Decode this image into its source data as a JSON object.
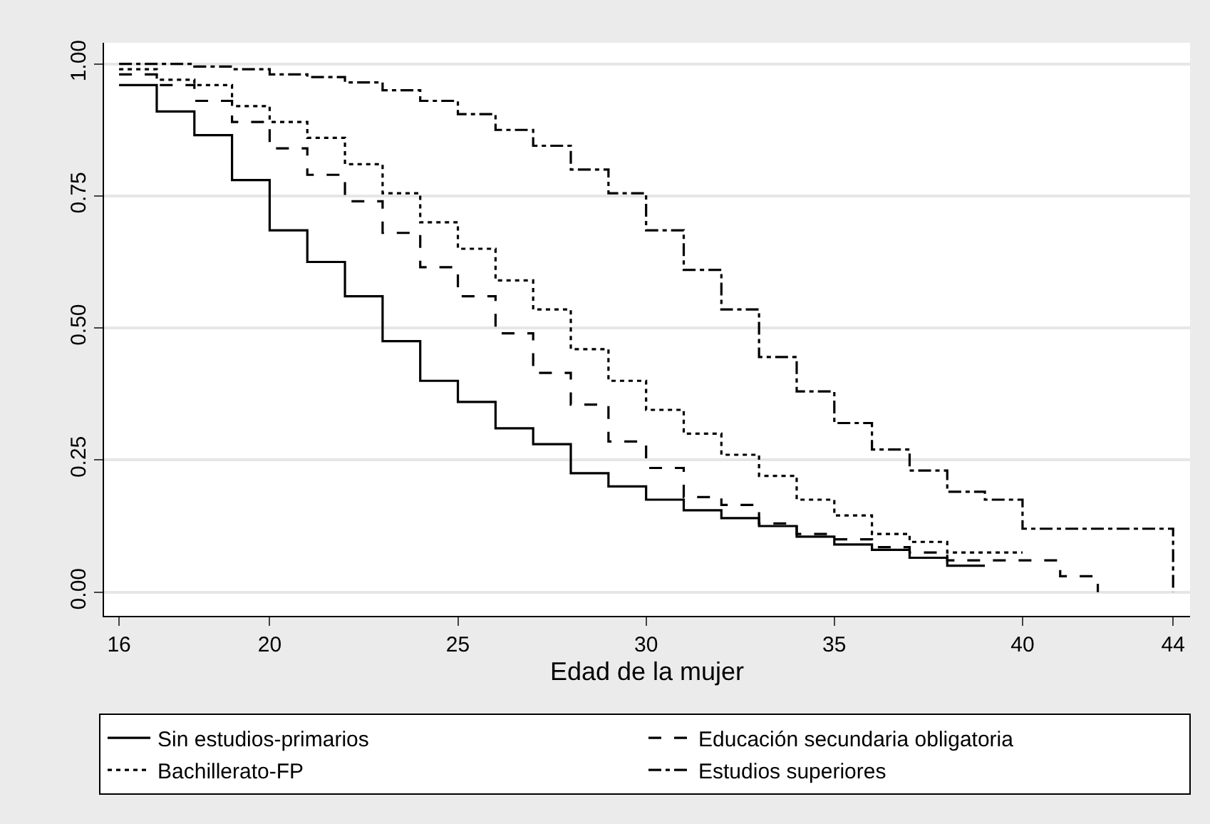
{
  "chart_data": {
    "type": "step",
    "xlabel": "Edad de la mujer",
    "xlim": [
      15.6,
      44.45
    ],
    "xticks": [
      16,
      20,
      25,
      30,
      35,
      40,
      44
    ],
    "ylim": [
      -0.045,
      1.04
    ],
    "yticks": [
      {
        "value": 0,
        "label": "0.00"
      },
      {
        "value": 0.25,
        "label": "0.25"
      },
      {
        "value": 0.5,
        "label": "0.50"
      },
      {
        "value": 0.75,
        "label": "0.75"
      },
      {
        "value": 1,
        "label": "1.00"
      }
    ],
    "grid": "y",
    "legend": "bottom",
    "marker": "none",
    "series": [
      {
        "name": "Sin estudios-primarios",
        "color": "#000000",
        "line_style": "solid",
        "x": [
          16,
          17,
          18,
          19,
          20,
          21,
          22,
          23,
          24,
          25,
          26,
          27,
          28,
          29,
          30,
          31,
          32,
          33,
          34,
          35,
          36,
          37,
          38,
          39
        ],
        "values": [
          0.96,
          0.91,
          0.865,
          0.78,
          0.685,
          0.625,
          0.56,
          0.475,
          0.4,
          0.36,
          0.31,
          0.28,
          0.225,
          0.2,
          0.175,
          0.155,
          0.14,
          0.125,
          0.105,
          0.09,
          0.08,
          0.065,
          0.05,
          0.05
        ]
      },
      {
        "name": "Educación secundaria obligatoria",
        "color": "#000000",
        "line_style": "dashed",
        "x": [
          16,
          17,
          18,
          19,
          20,
          21,
          22,
          23,
          24,
          25,
          26,
          27,
          28,
          29,
          30,
          31,
          32,
          33,
          34,
          35,
          36,
          37,
          38,
          39,
          40,
          41,
          42
        ],
        "values": [
          0.98,
          0.96,
          0.93,
          0.89,
          0.84,
          0.79,
          0.74,
          0.68,
          0.615,
          0.56,
          0.49,
          0.415,
          0.355,
          0.285,
          0.235,
          0.18,
          0.165,
          0.13,
          0.11,
          0.1,
          0.085,
          0.075,
          0.06,
          0.06,
          0.06,
          0.03,
          0
        ]
      },
      {
        "name": "Bachillerato-FP",
        "color": "#000000",
        "line_style": "dotted",
        "x": [
          16,
          17,
          18,
          19,
          20,
          21,
          22,
          23,
          24,
          25,
          26,
          27,
          28,
          29,
          30,
          31,
          32,
          33,
          34,
          35,
          36,
          37,
          38,
          39,
          40
        ],
        "values": [
          0.99,
          0.97,
          0.96,
          0.92,
          0.89,
          0.86,
          0.81,
          0.755,
          0.7,
          0.65,
          0.59,
          0.535,
          0.46,
          0.4,
          0.345,
          0.3,
          0.26,
          0.22,
          0.175,
          0.145,
          0.11,
          0.095,
          0.075,
          0.075,
          0.075
        ]
      },
      {
        "name": "Estudios superiores",
        "color": "#000000",
        "line_style": "dashdot",
        "x": [
          16,
          17,
          18,
          19,
          20,
          21,
          22,
          23,
          24,
          25,
          26,
          27,
          28,
          29,
          30,
          31,
          32,
          33,
          34,
          35,
          36,
          37,
          38,
          39,
          40,
          41,
          42,
          43,
          44
        ],
        "values": [
          1,
          1,
          0.995,
          0.99,
          0.98,
          0.975,
          0.965,
          0.95,
          0.93,
          0.905,
          0.875,
          0.845,
          0.8,
          0.755,
          0.685,
          0.61,
          0.535,
          0.445,
          0.38,
          0.32,
          0.27,
          0.23,
          0.19,
          0.175,
          0.12,
          0.12,
          0.12,
          0.12,
          0
        ]
      }
    ]
  }
}
